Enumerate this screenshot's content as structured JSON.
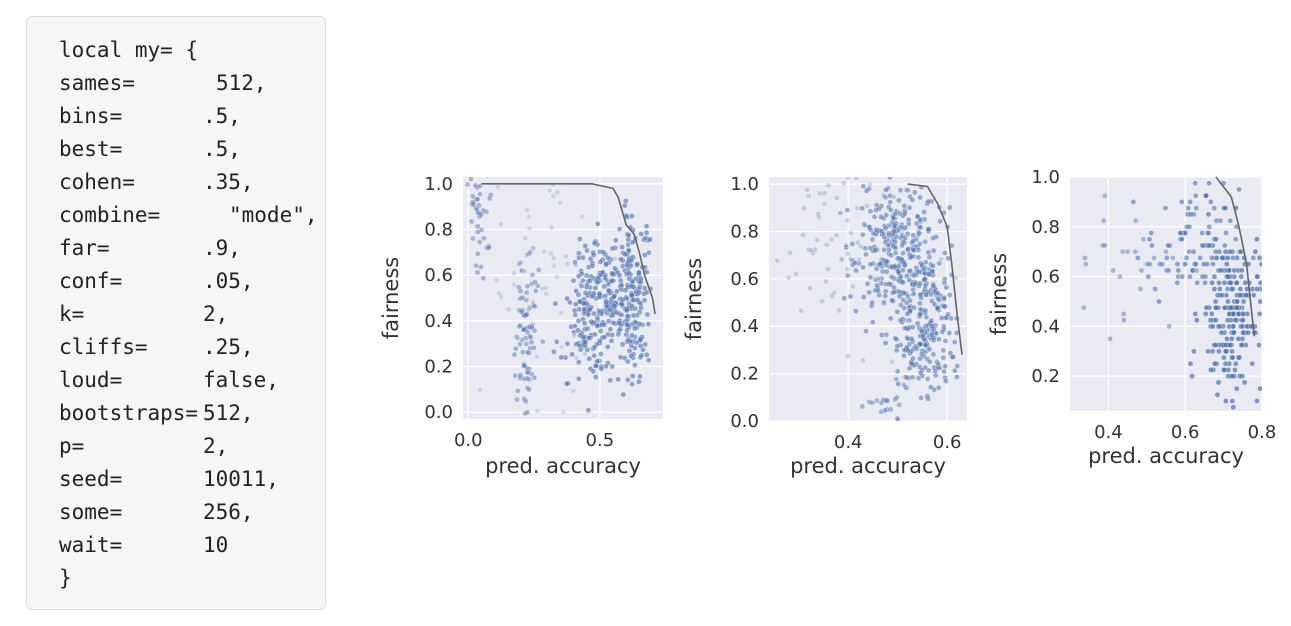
{
  "code": {
    "lines": [
      {
        "key": "local my= {",
        "value": ""
      },
      {
        "key": "sames=",
        "value": "512,"
      },
      {
        "key": "bins=",
        "value": ".5,"
      },
      {
        "key": "best=",
        "value": ".5,"
      },
      {
        "key": "cohen=",
        "value": ".35,"
      },
      {
        "key": "combine=",
        "value": "\"mode\","
      },
      {
        "key": "far=",
        "value": ".9,"
      },
      {
        "key": "conf=",
        "value": ".05,"
      },
      {
        "key": "k=",
        "value": "2,"
      },
      {
        "key": "cliffs=",
        "value": ".25,"
      },
      {
        "key": "loud=",
        "value": "false,"
      },
      {
        "key": "bootstraps=",
        "value": "512,"
      },
      {
        "key": "p=",
        "value": "2,"
      },
      {
        "key": "seed=",
        "value": "10011,"
      },
      {
        "key": "some=",
        "value": "256,"
      },
      {
        "key": "wait=",
        "value": "10"
      },
      {
        "key": "}",
        "value": ""
      }
    ]
  },
  "colors": {
    "plot_bg": "#eaeaf2",
    "grid": "#ffffff",
    "point": "#4c72b0",
    "frontier": "#666666"
  },
  "chart_data": [
    {
      "type": "scatter",
      "xlabel": "pred. accuracy",
      "ylabel": "fairness",
      "xlim": [
        -0.02,
        0.74
      ],
      "ylim": [
        -0.03,
        1.03
      ],
      "xticks": [
        0.0,
        0.5
      ],
      "xtick_labels": [
        "0.0",
        "0.5"
      ],
      "yticks": [
        0.0,
        0.2,
        0.4,
        0.6,
        0.8,
        1.0
      ],
      "ytick_labels": [
        "0.0",
        "0.2",
        "0.4",
        "0.6",
        "0.8",
        "1.0"
      ],
      "grid": true,
      "frontier": [
        [
          0.05,
          1.0
        ],
        [
          0.47,
          1.0
        ],
        [
          0.55,
          0.98
        ],
        [
          0.57,
          0.94
        ],
        [
          0.6,
          0.82
        ],
        [
          0.63,
          0.78
        ],
        [
          0.65,
          0.7
        ],
        [
          0.67,
          0.6
        ],
        [
          0.7,
          0.5
        ],
        [
          0.71,
          0.43
        ]
      ],
      "clusters": [
        {
          "x": 0.5,
          "y": 0.45,
          "sx": 0.06,
          "sy": 0.16,
          "n": 260,
          "opacity": 0.6
        },
        {
          "x": 0.63,
          "y": 0.5,
          "sx": 0.03,
          "sy": 0.18,
          "n": 150,
          "opacity": 0.6
        },
        {
          "x": 0.22,
          "y": 0.35,
          "sx": 0.02,
          "sy": 0.18,
          "n": 80,
          "opacity": 0.45
        },
        {
          "x": 0.04,
          "y": 0.85,
          "sx": 0.02,
          "sy": 0.12,
          "n": 40,
          "opacity": 0.45
        },
        {
          "x": 0.3,
          "y": 0.6,
          "sx": 0.15,
          "sy": 0.3,
          "n": 60,
          "opacity": 0.2
        }
      ]
    },
    {
      "type": "scatter",
      "xlabel": "pred. accuracy",
      "ylabel": "fairness",
      "xlim": [
        0.24,
        0.64
      ],
      "ylim": [
        0.0,
        1.03
      ],
      "xticks": [
        0.4,
        0.6
      ],
      "xtick_labels": [
        "0.4",
        "0.6"
      ],
      "yticks": [
        0.0,
        0.2,
        0.4,
        0.6,
        0.8,
        1.0
      ],
      "ytick_labels": [
        "0.0",
        "0.2",
        "0.4",
        "0.6",
        "0.8",
        "1.0"
      ],
      "grid": true,
      "frontier": [
        [
          0.52,
          1.0
        ],
        [
          0.56,
          0.99
        ],
        [
          0.58,
          0.92
        ],
        [
          0.6,
          0.82
        ],
        [
          0.61,
          0.65
        ],
        [
          0.62,
          0.45
        ],
        [
          0.63,
          0.28
        ]
      ],
      "clusters": [
        {
          "x": 0.5,
          "y": 0.72,
          "sx": 0.04,
          "sy": 0.16,
          "n": 300,
          "opacity": 0.55
        },
        {
          "x": 0.56,
          "y": 0.38,
          "sx": 0.03,
          "sy": 0.14,
          "n": 200,
          "opacity": 0.55
        },
        {
          "x": 0.4,
          "y": 0.75,
          "sx": 0.08,
          "sy": 0.2,
          "n": 80,
          "opacity": 0.25
        },
        {
          "x": 0.48,
          "y": 0.06,
          "sx": 0.02,
          "sy": 0.04,
          "n": 20,
          "opacity": 0.45
        }
      ]
    },
    {
      "type": "scatter",
      "xlabel": "pred. accuracy",
      "ylabel": "fairness",
      "xlim": [
        0.3,
        0.8
      ],
      "ylim": [
        0.06,
        1.0
      ],
      "xticks": [
        0.4,
        0.6,
        0.8
      ],
      "xtick_labels": [
        "0.4",
        "0.6",
        "0.8"
      ],
      "yticks": [
        0.2,
        0.4,
        0.6,
        0.8,
        1.0
      ],
      "ytick_labels": [
        "0.2",
        "0.4",
        "0.6",
        "0.8",
        "1.0"
      ],
      "grid": true,
      "frontier": [
        [
          0.68,
          1.0
        ],
        [
          0.72,
          0.92
        ],
        [
          0.74,
          0.8
        ],
        [
          0.76,
          0.65
        ],
        [
          0.77,
          0.5
        ],
        [
          0.78,
          0.36
        ]
      ],
      "quantized": true,
      "quant_step": 0.025,
      "clusters": [
        {
          "x": 0.72,
          "y": 0.45,
          "sx": 0.04,
          "sy": 0.16,
          "n": 220,
          "opacity": 0.7
        },
        {
          "x": 0.62,
          "y": 0.72,
          "sx": 0.06,
          "sy": 0.12,
          "n": 90,
          "opacity": 0.6
        },
        {
          "x": 0.45,
          "y": 0.7,
          "sx": 0.08,
          "sy": 0.16,
          "n": 30,
          "opacity": 0.45
        }
      ]
    }
  ]
}
